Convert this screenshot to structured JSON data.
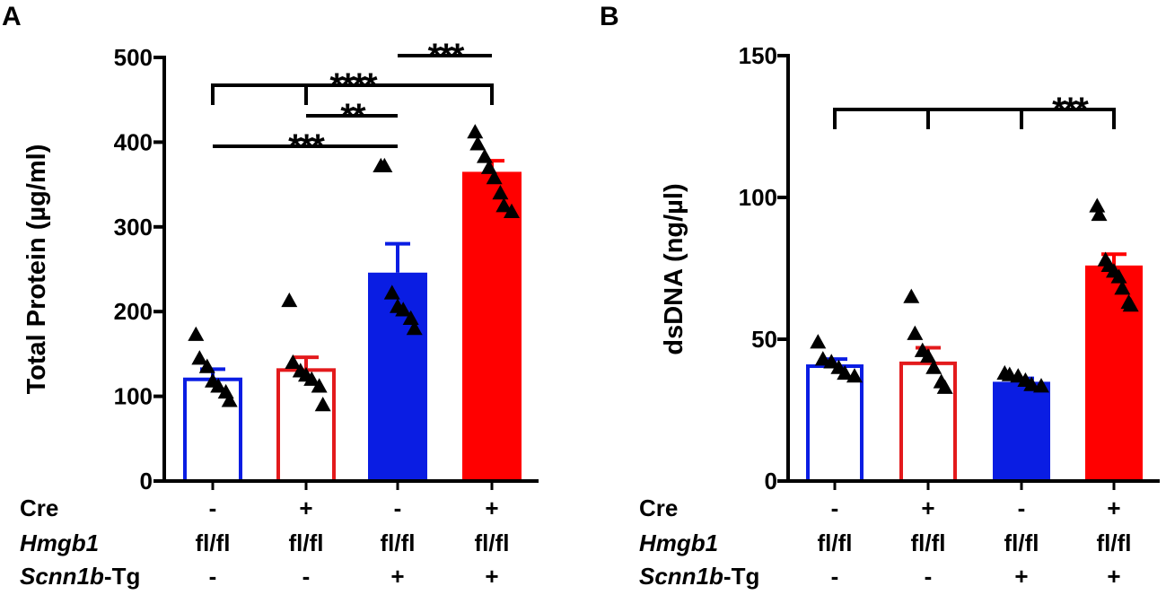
{
  "panels": [
    {
      "label": "A",
      "chart_data": {
        "type": "bar",
        "ylabel": "Total Protein (µg/ml)",
        "ylim": [
          0,
          500
        ],
        "yticks": [
          0,
          100,
          200,
          300,
          400,
          500
        ],
        "bars": [
          {
            "mean": 120,
            "sem": 12,
            "color": "#0a1de3",
            "filled": false,
            "points": [
              173,
              145,
              135,
              118,
              112,
              105,
              95
            ]
          },
          {
            "mean": 131,
            "sem": 15,
            "color": "#e31a1c",
            "filled": false,
            "points": [
              213,
              140,
              130,
              125,
              120,
              112,
              90
            ]
          },
          {
            "mean": 246,
            "sem": 34,
            "color": "#0a1de3",
            "filled": true,
            "points": [
              372,
              372,
              222,
              206,
              202,
              192,
              180
            ]
          },
          {
            "mean": 365,
            "sem": 13,
            "color": "#ff0000",
            "filled": true,
            "points": [
              412,
              398,
              383,
              370,
              358,
              340,
              325,
              318
            ]
          }
        ],
        "significance": [
          {
            "from": 2,
            "to": 3,
            "branches": [],
            "level": 1,
            "stars": "***"
          },
          {
            "from": 0,
            "to": 3,
            "branches": [
              1
            ],
            "level": 2,
            "stars": "****"
          },
          {
            "from": 1,
            "to": 2,
            "branches": [],
            "level": 3,
            "stars": "**"
          },
          {
            "from": 0,
            "to": 2,
            "branches": [],
            "level": 4,
            "stars": "***"
          }
        ]
      }
    },
    {
      "label": "B",
      "chart_data": {
        "type": "bar",
        "ylabel": "dsDNA (ng/µl)",
        "ylim": [
          0,
          150
        ],
        "yticks": [
          0,
          50,
          100,
          150
        ],
        "bars": [
          {
            "mean": 40.5,
            "sem": 2.5,
            "color": "#0a1de3",
            "filled": false,
            "points": [
              49,
              43,
              42,
              40,
              38,
              37
            ]
          },
          {
            "mean": 41.5,
            "sem": 5.5,
            "color": "#e31a1c",
            "filled": false,
            "points": [
              65,
              52,
              46,
              44,
              40,
              35,
              33
            ]
          },
          {
            "mean": 35,
            "sem": 1.2,
            "color": "#0a1de3",
            "filled": true,
            "points": [
              38,
              37.5,
              37,
              35.5,
              34,
              33.5
            ]
          },
          {
            "mean": 76,
            "sem": 4,
            "color": "#ff0000",
            "filled": true,
            "points": [
              97,
              94,
              78,
              76,
              74,
              72,
              68,
              63,
              62
            ]
          }
        ],
        "significance": [
          {
            "from": 0,
            "to": 3,
            "branches": [
              1,
              2
            ],
            "level": 1,
            "stars": "***"
          }
        ]
      }
    }
  ],
  "table": {
    "row_labels": [
      {
        "italic": "",
        "normal": "Cre"
      },
      {
        "italic": "Hmgb1",
        "normal": ""
      },
      {
        "italic": "Scnn1b",
        "normal": "-Tg"
      }
    ],
    "rows": [
      [
        "-",
        "+",
        "-",
        "+"
      ],
      [
        "fl/fl",
        "fl/fl",
        "fl/fl",
        "fl/fl"
      ],
      [
        "-",
        "-",
        "+",
        "+"
      ]
    ]
  }
}
